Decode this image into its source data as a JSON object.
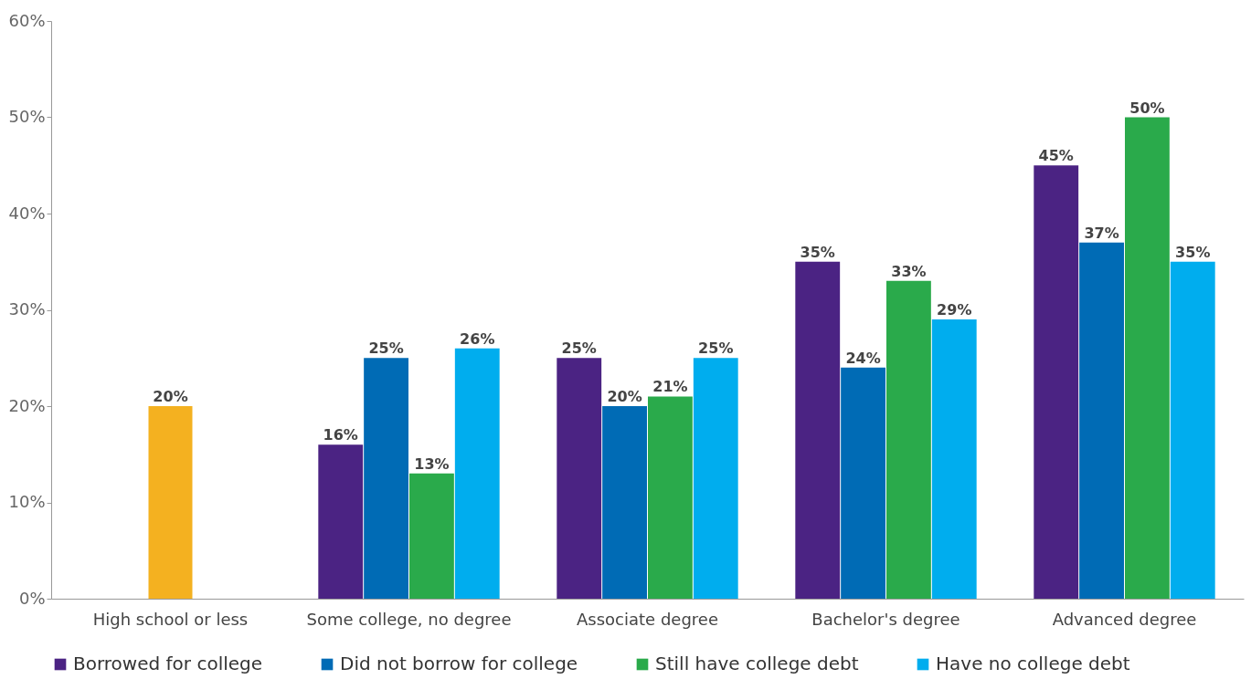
{
  "chart_data": {
    "type": "bar",
    "categories": [
      "High school or less",
      "Some college, no degree",
      "Associate degree",
      "Bachelor's degree",
      "Advanced degree"
    ],
    "series": [
      {
        "name": "Borrowed for college",
        "color": "#4b2383",
        "values": [
          null,
          16,
          25,
          35,
          45
        ],
        "value_labels": [
          null,
          "16%",
          "25%",
          "35%",
          "45%"
        ]
      },
      {
        "name": "Did not borrow for college",
        "color": "#006bb5",
        "values": [
          null,
          25,
          20,
          24,
          37
        ],
        "value_labels": [
          null,
          "25%",
          "20%",
          "24%",
          "37%"
        ]
      },
      {
        "name": "Still have college debt",
        "color": "#2aaa4b",
        "values": [
          null,
          13,
          21,
          33,
          50
        ],
        "value_labels": [
          null,
          "13%",
          "21%",
          "33%",
          "50%"
        ]
      },
      {
        "name": "Have no college debt",
        "color": "#00adee",
        "values": [
          null,
          26,
          25,
          29,
          35
        ],
        "value_labels": [
          null,
          "26%",
          "25%",
          "29%",
          "35%"
        ]
      },
      {
        "color": "#f4b120",
        "values": [
          20,
          null,
          null,
          null,
          null
        ],
        "value_labels": [
          "20%",
          null,
          null,
          null,
          null
        ]
      }
    ],
    "ylim": [
      0,
      60
    ],
    "yticks": [
      {
        "value": 0,
        "label": "0%"
      },
      {
        "value": 10,
        "label": "10%"
      },
      {
        "value": 20,
        "label": "20%"
      },
      {
        "value": 30,
        "label": "30%"
      },
      {
        "value": 40,
        "label": "40%"
      },
      {
        "value": 50,
        "label": "50%"
      },
      {
        "value": 60,
        "label": "60%"
      }
    ],
    "legend": "bottom",
    "grid": false
  }
}
